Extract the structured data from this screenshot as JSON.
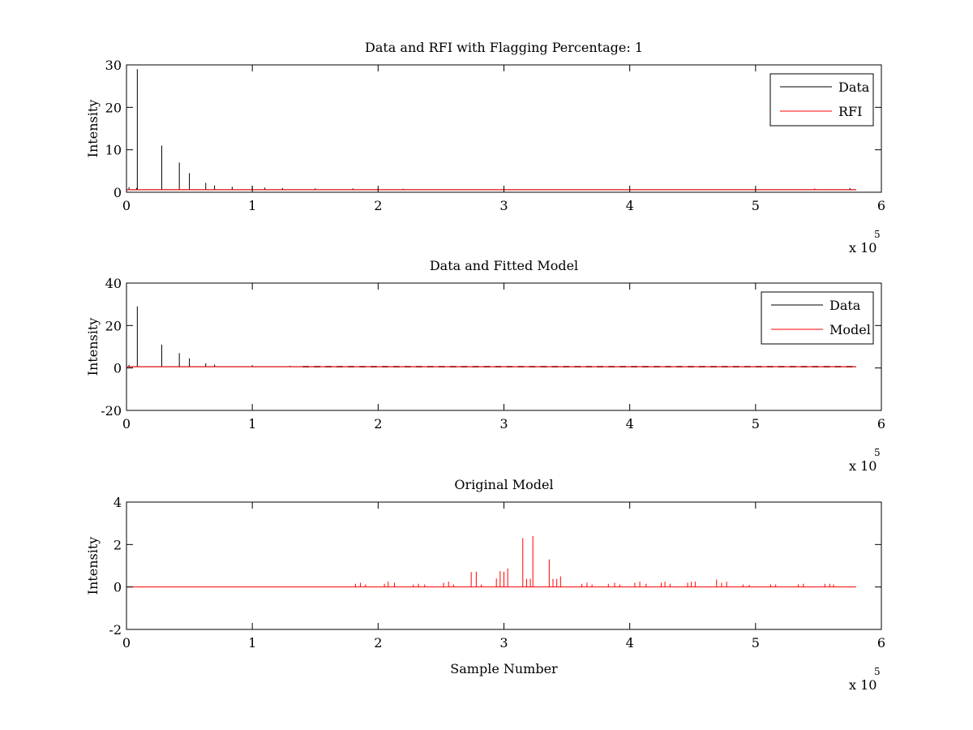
{
  "chart_data": [
    {
      "type": "line",
      "title": "Data and RFI with Flagging Percentage: 1",
      "xlabel": "",
      "ylabel": "Intensity",
      "xlim": [
        0,
        600000
      ],
      "ylim": [
        0,
        30
      ],
      "xticks": [
        0,
        1,
        2,
        3,
        4,
        5,
        6
      ],
      "yticks": [
        0,
        10,
        20,
        30
      ],
      "x_exponent": "x 10",
      "x_exponent_power": "5",
      "legend_position": "top-right",
      "grid": false,
      "series": [
        {
          "name": "Data",
          "color": "#000000",
          "baseline": 0.6,
          "spikes": [
            {
              "x": 2000,
              "y": 1.2
            },
            {
              "x": 8000,
              "y": 1.0
            },
            {
              "x": 8600,
              "y": 29
            },
            {
              "x": 28000,
              "y": 11
            },
            {
              "x": 42000,
              "y": 7
            },
            {
              "x": 50000,
              "y": 4.5
            },
            {
              "x": 63000,
              "y": 2.2
            },
            {
              "x": 70000,
              "y": 1.6
            },
            {
              "x": 84000,
              "y": 1.3
            },
            {
              "x": 100000,
              "y": 1.5
            },
            {
              "x": 110000,
              "y": 1.1
            },
            {
              "x": 124000,
              "y": 1.0
            },
            {
              "x": 150000,
              "y": 0.9
            },
            {
              "x": 180000,
              "y": 0.9
            },
            {
              "x": 200000,
              "y": 0.9
            },
            {
              "x": 220000,
              "y": 0.8
            },
            {
              "x": 300000,
              "y": 0.8
            },
            {
              "x": 500000,
              "y": 0.8
            },
            {
              "x": 575000,
              "y": 1.0
            }
          ]
        },
        {
          "name": "RFI",
          "color": "#ff0000",
          "baseline": 0.6,
          "spikes": [
            {
              "x": 42000,
              "y": 1.2
            },
            {
              "x": 547000,
              "y": 0.9
            }
          ]
        }
      ]
    },
    {
      "type": "line",
      "title": "Data and Fitted Model",
      "xlabel": "",
      "ylabel": "Intensity",
      "xlim": [
        0,
        600000
      ],
      "ylim": [
        -20,
        40
      ],
      "xticks": [
        0,
        1,
        2,
        3,
        4,
        5,
        6
      ],
      "yticks": [
        -20,
        0,
        20,
        40
      ],
      "x_exponent": "x 10",
      "x_exponent_power": "5",
      "legend_position": "top-right",
      "grid": false,
      "series": [
        {
          "name": "Data",
          "color": "#000000",
          "baseline": 0.6,
          "spikes": [
            {
              "x": 2000,
              "y": 1.5
            },
            {
              "x": 8600,
              "y": 29
            },
            {
              "x": 28000,
              "y": 11
            },
            {
              "x": 42000,
              "y": 7
            },
            {
              "x": 50000,
              "y": 4.5
            },
            {
              "x": 63000,
              "y": 2.2
            },
            {
              "x": 70000,
              "y": 1.6
            },
            {
              "x": 100000,
              "y": 1.3
            },
            {
              "x": 130000,
              "y": 1.0
            }
          ]
        },
        {
          "name": "Model",
          "color": "#ff0000",
          "baseline": 0.6,
          "spikes": []
        }
      ]
    },
    {
      "type": "line",
      "title": "Original Model",
      "xlabel": "Sample Number",
      "ylabel": "Intensity",
      "xlim": [
        0,
        600000
      ],
      "ylim": [
        -2,
        4
      ],
      "xticks": [
        0,
        1,
        2,
        3,
        4,
        5,
        6
      ],
      "yticks": [
        -2,
        0,
        2,
        4
      ],
      "x_exponent": "x 10",
      "x_exponent_power": "5",
      "grid": false,
      "series": [
        {
          "color": "#ff0000",
          "baseline": 0,
          "spikes": [
            {
              "x": 182000,
              "y": 0.15
            },
            {
              "x": 186000,
              "y": 0.2
            },
            {
              "x": 190000,
              "y": 0.12
            },
            {
              "x": 205000,
              "y": 0.15
            },
            {
              "x": 208000,
              "y": 0.25
            },
            {
              "x": 213000,
              "y": 0.2
            },
            {
              "x": 228000,
              "y": 0.12
            },
            {
              "x": 232000,
              "y": 0.15
            },
            {
              "x": 237000,
              "y": 0.12
            },
            {
              "x": 252000,
              "y": 0.2
            },
            {
              "x": 256000,
              "y": 0.25
            },
            {
              "x": 260000,
              "y": 0.12
            },
            {
              "x": 274000,
              "y": 0.7
            },
            {
              "x": 278000,
              "y": 0.72
            },
            {
              "x": 282000,
              "y": 0.12
            },
            {
              "x": 294000,
              "y": 0.4
            },
            {
              "x": 297000,
              "y": 0.75
            },
            {
              "x": 300000,
              "y": 0.72
            },
            {
              "x": 303000,
              "y": 0.88
            },
            {
              "x": 315000,
              "y": 2.3
            },
            {
              "x": 318000,
              "y": 0.38
            },
            {
              "x": 321000,
              "y": 0.38
            },
            {
              "x": 323000,
              "y": 2.4
            },
            {
              "x": 336000,
              "y": 1.3
            },
            {
              "x": 339000,
              "y": 0.38
            },
            {
              "x": 342000,
              "y": 0.38
            },
            {
              "x": 345000,
              "y": 0.5
            },
            {
              "x": 362000,
              "y": 0.15
            },
            {
              "x": 366000,
              "y": 0.2
            },
            {
              "x": 370000,
              "y": 0.12
            },
            {
              "x": 383000,
              "y": 0.15
            },
            {
              "x": 388000,
              "y": 0.2
            },
            {
              "x": 392000,
              "y": 0.12
            },
            {
              "x": 404000,
              "y": 0.2
            },
            {
              "x": 408000,
              "y": 0.25
            },
            {
              "x": 413000,
              "y": 0.15
            },
            {
              "x": 425000,
              "y": 0.2
            },
            {
              "x": 428000,
              "y": 0.25
            },
            {
              "x": 432000,
              "y": 0.15
            },
            {
              "x": 446000,
              "y": 0.2
            },
            {
              "x": 449000,
              "y": 0.25
            },
            {
              "x": 452000,
              "y": 0.25
            },
            {
              "x": 469000,
              "y": 0.35
            },
            {
              "x": 473000,
              "y": 0.2
            },
            {
              "x": 477000,
              "y": 0.25
            },
            {
              "x": 490000,
              "y": 0.12
            },
            {
              "x": 495000,
              "y": 0.1
            },
            {
              "x": 512000,
              "y": 0.12
            },
            {
              "x": 516000,
              "y": 0.12
            },
            {
              "x": 534000,
              "y": 0.12
            },
            {
              "x": 538000,
              "y": 0.15
            },
            {
              "x": 555000,
              "y": 0.15
            },
            {
              "x": 559000,
              "y": 0.15
            },
            {
              "x": 562000,
              "y": 0.12
            }
          ]
        }
      ]
    }
  ]
}
